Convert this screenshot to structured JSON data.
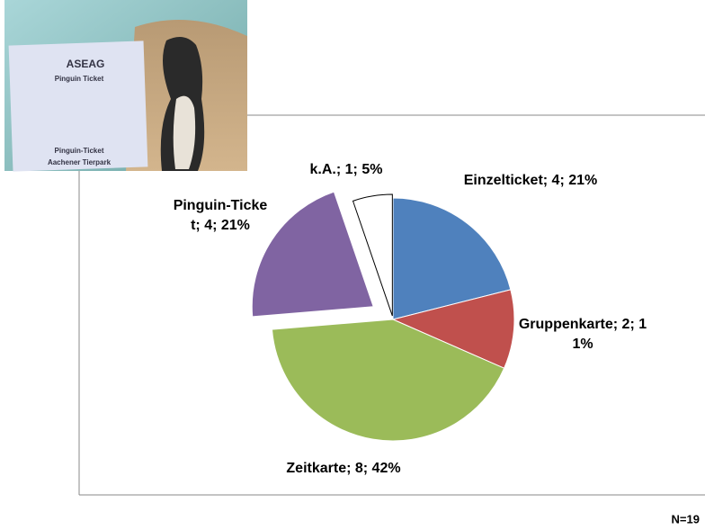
{
  "chart_data": {
    "type": "pie",
    "values": [
      4,
      2,
      8,
      4,
      1
    ],
    "value_labels": [
      "Einzelticket; 4; 21%",
      "Gruppenkarte; 2; 11%",
      "Zeitkarte; 8; 42%",
      "Pinguin-Ticket; 4; 21%",
      "k.A.; 1; 5%"
    ],
    "colors": [
      "#4f81bd",
      "#c0504d",
      "#9bbb59",
      "#8064a2",
      "#ffffff"
    ],
    "note": "N=19"
  },
  "photo": {
    "ticket_lines": [
      "ASEAG",
      "Pinguin Ticket",
      "Pinguin-Ticket",
      "Aachener Tierpark"
    ]
  }
}
